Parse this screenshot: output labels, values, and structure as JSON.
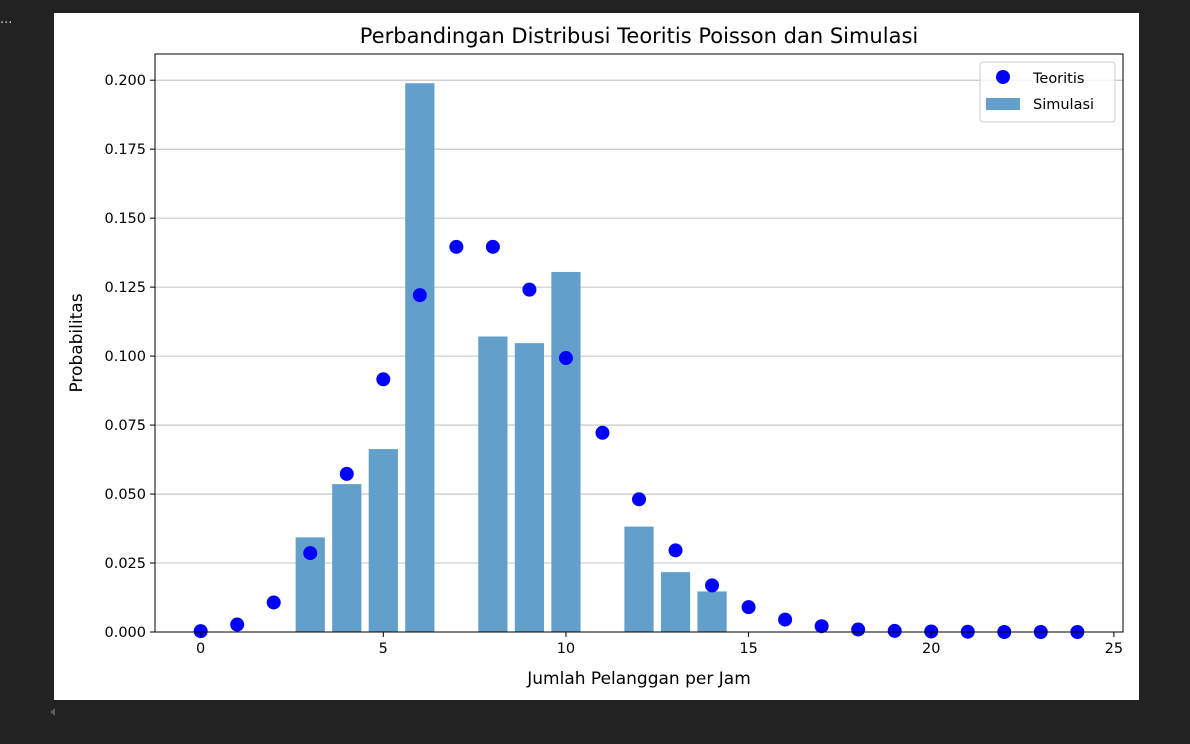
{
  "cell": {
    "ellipsis": "..."
  },
  "chart_data": {
    "type": "bar",
    "title": "Perbandingan Distribusi Teoritis Poisson dan Simulasi",
    "xlabel": "Jumlah Pelanggan per Jam",
    "ylabel": "Probabilitas",
    "xlim": [
      -1.25,
      25.25
    ],
    "ylim": [
      0,
      0.2095
    ],
    "xticks": [
      0,
      5,
      10,
      15,
      20,
      25
    ],
    "xtick_labels": [
      "0",
      "5",
      "10",
      "15",
      "20",
      "25"
    ],
    "yticks": [
      0.0,
      0.025,
      0.05,
      0.075,
      0.1,
      0.125,
      0.15,
      0.175,
      0.2
    ],
    "ytick_labels": [
      "0.000",
      "0.025",
      "0.050",
      "0.075",
      "0.100",
      "0.125",
      "0.150",
      "0.175",
      "0.200"
    ],
    "grid": "horizontal",
    "legend_position": "top-right",
    "series": [
      {
        "name": "Simulasi",
        "kind": "bar",
        "color": "#629fca",
        "x": [
          3,
          4,
          5,
          6,
          8,
          9,
          10,
          12,
          13,
          14
        ],
        "values": [
          0.0343,
          0.0536,
          0.0663,
          0.1989,
          0.1071,
          0.1047,
          0.1305,
          0.0382,
          0.0217,
          0.0147
        ]
      },
      {
        "name": "Teoritis",
        "kind": "scatter",
        "color": "#0000ff",
        "x": [
          0,
          1,
          2,
          3,
          4,
          5,
          6,
          7,
          8,
          9,
          10,
          11,
          12,
          13,
          14,
          15,
          16,
          17,
          18,
          19,
          20,
          21,
          22,
          23,
          24
        ],
        "values": [
          0.0003,
          0.0027,
          0.0107,
          0.0286,
          0.0573,
          0.0916,
          0.1221,
          0.1396,
          0.1396,
          0.1241,
          0.0993,
          0.0722,
          0.0481,
          0.0296,
          0.0169,
          0.009,
          0.0045,
          0.0021,
          0.0009,
          0.0004,
          0.0002,
          0.0001,
          0.0,
          0.0,
          0.0
        ]
      }
    ]
  }
}
